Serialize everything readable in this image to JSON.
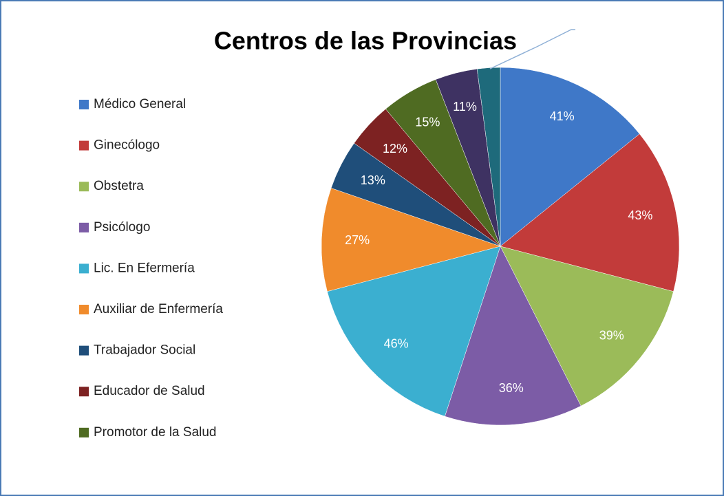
{
  "chart_data": {
    "type": "pie",
    "title": "Centros de las Provincias",
    "categories": [
      "Médico General",
      "Ginecólogo",
      "Obstetra",
      "Psicólogo",
      "Lic. En Efermería",
      "Auxiliar de Enfermería",
      "Trabajador Social",
      "Educador de Salud",
      "Promotor de la Salud",
      null,
      null
    ],
    "values": [
      41,
      43,
      39,
      36,
      46,
      27,
      13,
      12,
      15,
      11,
      6
    ],
    "value_labels": [
      "41%",
      "43%",
      "39%",
      "36%",
      "46%",
      "27%",
      "13%",
      "12%",
      "15%",
      "11%",
      null
    ],
    "colors": [
      "#3f78c8",
      "#c23b3a",
      "#9bbb59",
      "#7c5ca6",
      "#3bafd0",
      "#f08b2c",
      "#1f4e7a",
      "#7d2222",
      "#4f6b22",
      "#3e3262",
      "#1e6a7b"
    ],
    "legend": "left"
  }
}
